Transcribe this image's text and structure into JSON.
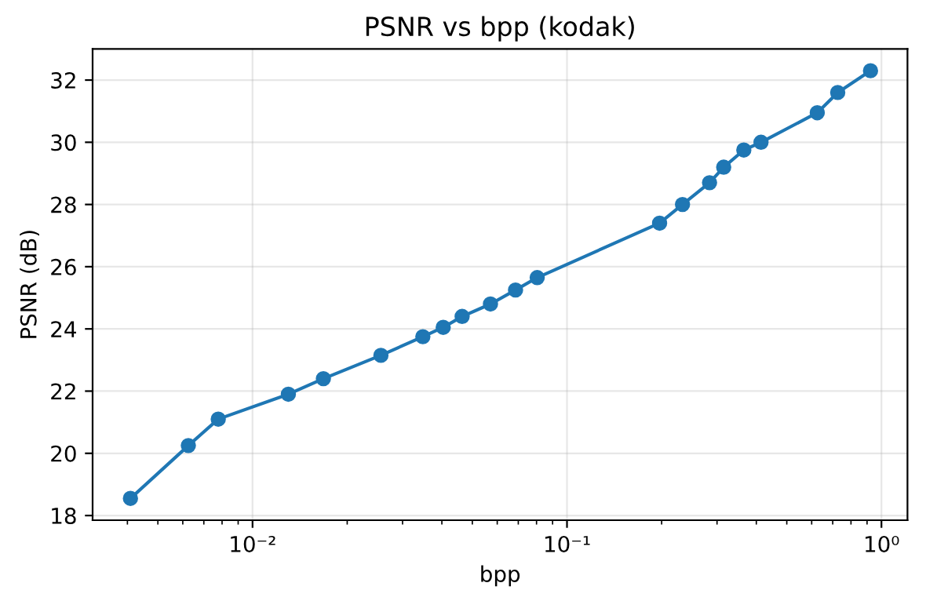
{
  "chart_data": {
    "type": "line",
    "title": "PSNR vs bpp (kodak)",
    "xlabel": "bpp",
    "ylabel": "PSNR (dB)",
    "x": [
      0.00409,
      0.00625,
      0.00778,
      0.013,
      0.0168,
      0.0256,
      0.0348,
      0.0404,
      0.0464,
      0.0571,
      0.0686,
      0.0804,
      0.197,
      0.233,
      0.284,
      0.315,
      0.365,
      0.414,
      0.625,
      0.726,
      0.923
    ],
    "series": [
      {
        "color": "#1f77b4",
        "values": [
          18.55,
          20.25,
          21.1,
          21.9,
          22.4,
          23.15,
          23.75,
          24.05,
          24.4,
          24.8,
          25.25,
          25.65,
          27.4,
          28.0,
          28.7,
          29.2,
          29.75,
          30.0,
          30.95,
          31.6,
          32.3
        ]
      }
    ],
    "log": "x",
    "xlim": [
      0.0031,
      1.21
    ],
    "ylim": [
      17.85,
      33.0
    ],
    "xticks": [
      {
        "value": 0.01,
        "label": "10⁻²"
      },
      {
        "value": 0.1,
        "label": "10⁻¹"
      },
      {
        "value": 1,
        "label": "10⁰"
      }
    ],
    "yticks": [
      18,
      20,
      22,
      24,
      26,
      28,
      30,
      32
    ],
    "grid": true,
    "marker": "circle",
    "line_style": "solid"
  }
}
